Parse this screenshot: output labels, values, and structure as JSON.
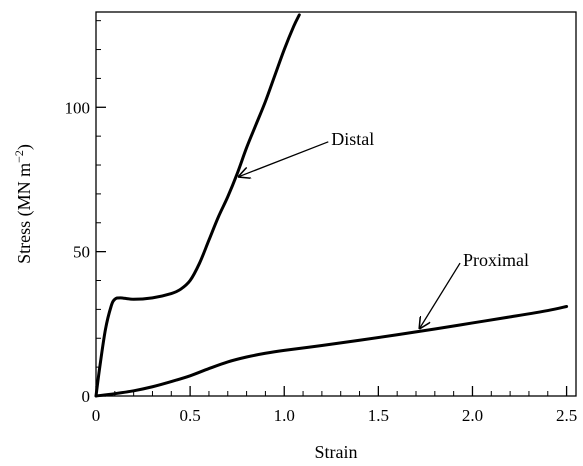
{
  "chart_data": {
    "type": "line",
    "xlabel": "Strain",
    "ylabel_main": "Stress (MN m",
    "ylabel_sup": "−2",
    "ylabel_close": ")",
    "xlim": [
      0,
      2.55
    ],
    "ylim": [
      0,
      133
    ],
    "x_ticks": [
      0,
      0.5,
      1.0,
      1.5,
      2.0,
      2.5
    ],
    "x_tick_labels": [
      "0",
      "0.5",
      "1.0",
      "1.5",
      "2.0",
      "2.5"
    ],
    "y_ticks": [
      0,
      50,
      100
    ],
    "y_tick_labels": [
      "0",
      "50",
      "100"
    ],
    "grid": false,
    "series": [
      {
        "name": "Distal",
        "x": [
          0,
          0.02,
          0.05,
          0.08,
          0.1,
          0.13,
          0.2,
          0.3,
          0.4,
          0.45,
          0.5,
          0.55,
          0.6,
          0.65,
          0.7,
          0.75,
          0.8,
          0.85,
          0.9,
          0.95,
          1.0,
          1.05,
          1.08
        ],
        "y": [
          0,
          10,
          23,
          31,
          33.5,
          34,
          33.5,
          34,
          35.5,
          37,
          40,
          46,
          54,
          62,
          69,
          77,
          86,
          94,
          102,
          111,
          120,
          128,
          132
        ]
      },
      {
        "name": "Proximal",
        "x": [
          0,
          0.1,
          0.2,
          0.3,
          0.4,
          0.5,
          0.6,
          0.7,
          0.8,
          0.9,
          1.0,
          1.2,
          1.4,
          1.6,
          1.8,
          2.0,
          2.2,
          2.4,
          2.5
        ],
        "y": [
          0,
          0.8,
          1.8,
          3.2,
          5,
          7,
          9.5,
          11.8,
          13.5,
          14.8,
          15.8,
          17.5,
          19.3,
          21.2,
          23.2,
          25.3,
          27.4,
          29.6,
          31
        ]
      }
    ],
    "annotations": [
      {
        "label": "Distal",
        "target_x": 0.76,
        "target_y": 76,
        "text_x": 1.25,
        "text_y": 87
      },
      {
        "label": "Proximal",
        "target_x": 1.72,
        "target_y": 23.5,
        "text_x": 1.95,
        "text_y": 45
      }
    ]
  }
}
